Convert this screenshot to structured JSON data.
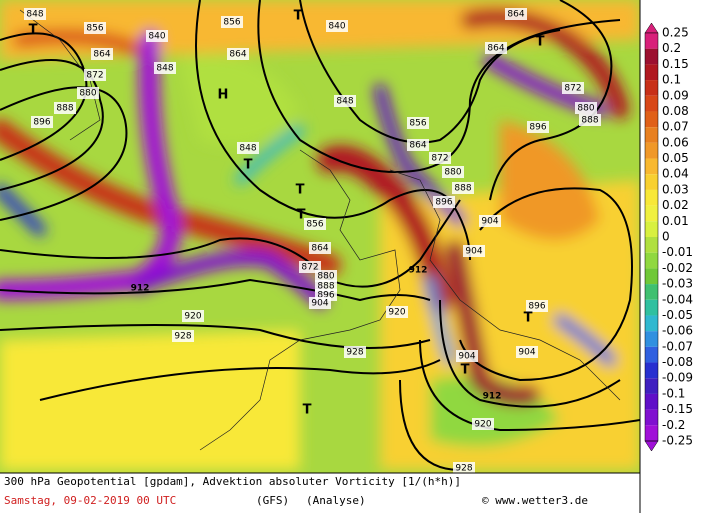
{
  "footer": {
    "title": "300 hPa Geopotential [gpdam], Advektion absoluter Vorticity [1/(h*h)]",
    "date": "Samstag, 09-02-2019  00 UTC",
    "model": "(GFS)",
    "run": "(Analyse)",
    "credit": "© www.wetter3.de"
  },
  "legend": {
    "levels": [
      0.25,
      0.2,
      0.15,
      0.1,
      0.09,
      0.08,
      0.07,
      0.06,
      0.05,
      0.04,
      0.03,
      0.02,
      0.01,
      0,
      -0.01,
      -0.02,
      -0.03,
      -0.04,
      -0.05,
      -0.06,
      -0.07,
      -0.08,
      -0.09,
      -0.1,
      -0.15,
      -0.2,
      -0.25
    ],
    "colors": [
      "#d8207a",
      "#9c1030",
      "#b01820",
      "#c83018",
      "#d84818",
      "#e06018",
      "#e88020",
      "#f09828",
      "#f8b830",
      "#f8d030",
      "#f8e838",
      "#f0f040",
      "#d8f040",
      "#b0e040",
      "#90d840",
      "#70c838",
      "#40c070",
      "#30c0a0",
      "#30b8d0",
      "#3090e0",
      "#3060e0",
      "#2830d0",
      "#4020c0",
      "#6010c8",
      "#8010d0",
      "#a010d8"
    ]
  },
  "contour_labels": [
    848,
    856,
    864,
    872,
    880,
    888,
    896,
    840,
    848,
    856,
    864,
    840,
    848,
    856,
    864,
    872,
    880,
    888,
    896,
    856,
    864,
    872,
    880,
    888,
    896,
    904,
    912,
    920,
    928,
    912,
    920,
    928,
    904,
    904,
    896,
    904,
    904,
    912,
    920,
    928,
    864,
    864,
    872,
    880,
    888,
    896,
    848
  ],
  "pressure_centers": [
    "T",
    "T",
    "T",
    "H",
    "T",
    "T",
    "T",
    "T",
    "T",
    "T"
  ]
}
